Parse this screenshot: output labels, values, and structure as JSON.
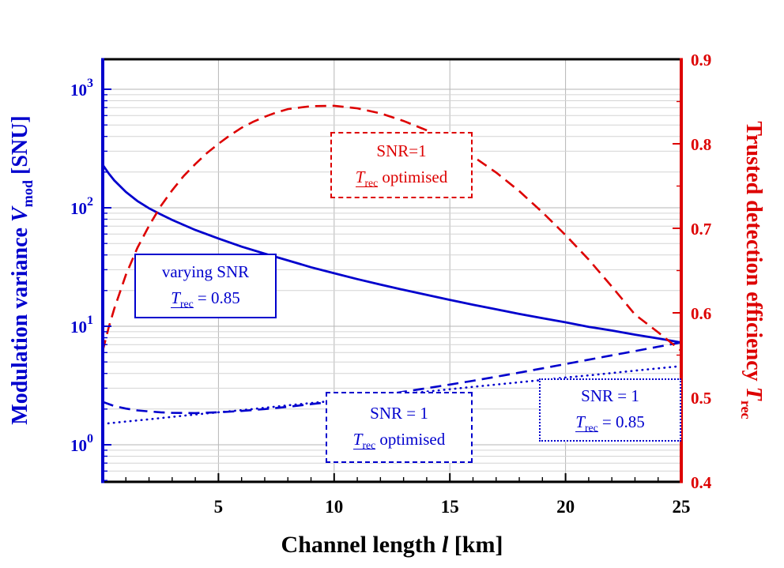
{
  "figure": {
    "background": "#ffffff"
  },
  "colors": {
    "blue": "#0000cd",
    "red": "#dd0000",
    "grid_major": "#b6b6b6",
    "grid_minor": "#d4d4d4",
    "frame": "#000000"
  },
  "axes": {
    "x": {
      "prefix": "Channel length ",
      "var": "l",
      "suffix": " [km]"
    },
    "y_left": {
      "prefix": "Modulation variance ",
      "var": "V",
      "sub": "mod",
      "suffix": " [SNU]"
    },
    "y_right": {
      "prefix": "Trusted detection efficiency ",
      "var": "T",
      "sub": "rec",
      "suffix": ""
    }
  },
  "legends": {
    "red_optimised": {
      "line1": "SNR=1",
      "var": "T",
      "sub": "rec",
      "rest": " optimised"
    },
    "blue_solid": {
      "line1": "varying SNR",
      "var": "T",
      "sub": "rec",
      "rest": " = 0.85"
    },
    "blue_dashed": {
      "line1": "SNR = 1",
      "var": "T",
      "sub": "rec",
      "rest": " optimised"
    },
    "blue_dotted": {
      "line1": "SNR = 1",
      "var": "T",
      "sub": "rec",
      "rest": " = 0.85"
    }
  },
  "chart_data": {
    "type": "line",
    "x_axis": {
      "label": "Channel length l [km]",
      "range": [
        0,
        25
      ],
      "major_ticks": [
        5,
        10,
        15,
        20,
        25
      ],
      "tick_labels": [
        "5",
        "10",
        "15",
        "20",
        "25"
      ],
      "minor_tick_step": 1,
      "gridlines": [
        5,
        10,
        15,
        20
      ]
    },
    "y_left_axis": {
      "label": "Modulation variance V_mod [SNU]",
      "scale": "log",
      "color": "#0000cd",
      "ticks": [
        1,
        10,
        100,
        1000
      ],
      "tick_base": "10",
      "tick_exponents": [
        "0",
        "1",
        "2",
        "3"
      ],
      "range_exponents": [
        -0.315,
        3.255
      ]
    },
    "y_right_axis": {
      "label": "Trusted detection efficiency T_rec",
      "scale": "linear",
      "color": "#dd0000",
      "range": [
        0.4,
        0.9
      ],
      "major_ticks": [
        0.4,
        0.5,
        0.6,
        0.7,
        0.8,
        0.9
      ],
      "tick_labels": [
        "0.4",
        "0.5",
        "0.6",
        "0.7",
        "0.8",
        "0.9"
      ],
      "minor_tick_step": 0.05
    },
    "grid": true,
    "series": [
      {
        "name": "varying SNR, T_rec = 0.85",
        "axis": "left",
        "style": "solid",
        "color": "#0000cd",
        "x": [
          0,
          0.25,
          0.5,
          1,
          1.5,
          2,
          2.5,
          3,
          4,
          5,
          6,
          7,
          8,
          9,
          10,
          11,
          12,
          13,
          14,
          15,
          16,
          17,
          18,
          19,
          20,
          21,
          22,
          23,
          24,
          25
        ],
        "y": [
          230,
          196,
          170,
          136,
          114,
          99,
          88,
          79,
          65,
          55,
          47,
          41,
          36,
          31.5,
          28,
          25,
          22.5,
          20.3,
          18.4,
          16.7,
          15.2,
          13.9,
          12.7,
          11.7,
          10.8,
          9.9,
          9.2,
          8.5,
          7.9,
          7.3
        ]
      },
      {
        "name": "SNR = 1, T_rec = 0.85",
        "axis": "left",
        "style": "dotted",
        "color": "#0000cd",
        "x": [
          0,
          1,
          2,
          3,
          4,
          5,
          6,
          7,
          8,
          9,
          10,
          11,
          12,
          13,
          14,
          15,
          16,
          17,
          18,
          19,
          20,
          21,
          22,
          23,
          24,
          25
        ],
        "y": [
          1.5,
          1.57,
          1.64,
          1.72,
          1.8,
          1.88,
          1.96,
          2.05,
          2.15,
          2.25,
          2.35,
          2.46,
          2.57,
          2.69,
          2.81,
          2.94,
          3.08,
          3.22,
          3.37,
          3.52,
          3.69,
          3.85,
          4.03,
          4.22,
          4.41,
          4.61
        ]
      },
      {
        "name": "SNR = 1, T_rec optimised (V_mod)",
        "axis": "left",
        "style": "dashed",
        "color": "#0000cd",
        "x": [
          0,
          0.5,
          1,
          1.5,
          2,
          2.5,
          3,
          4,
          5,
          6,
          7,
          8,
          9,
          10,
          11,
          12,
          13,
          14,
          15,
          16,
          17,
          18,
          19,
          20,
          21,
          22,
          23,
          24,
          25
        ],
        "y": [
          2.3,
          2.12,
          2.02,
          1.95,
          1.91,
          1.88,
          1.86,
          1.85,
          1.88,
          1.93,
          2.0,
          2.09,
          2.2,
          2.32,
          2.46,
          2.62,
          2.8,
          3.0,
          3.22,
          3.47,
          3.75,
          4.06,
          4.41,
          4.8,
          5.22,
          5.68,
          6.18,
          6.72,
          7.3
        ]
      },
      {
        "name": "SNR = 1, T_rec optimised",
        "axis": "right",
        "style": "dashed",
        "color": "#dd0000",
        "x": [
          0,
          0.25,
          0.5,
          1,
          1.5,
          2,
          2.5,
          3,
          3.5,
          4,
          4.5,
          5,
          5.5,
          6,
          6.5,
          7,
          7.5,
          8,
          9,
          10,
          11,
          12,
          13,
          14,
          15,
          16,
          17,
          18,
          19,
          20,
          21,
          22,
          23,
          24,
          25
        ],
        "y": [
          0.555,
          0.582,
          0.605,
          0.645,
          0.677,
          0.703,
          0.726,
          0.745,
          0.762,
          0.776,
          0.789,
          0.8,
          0.81,
          0.819,
          0.826,
          0.832,
          0.837,
          0.841,
          0.8445,
          0.845,
          0.842,
          0.836,
          0.827,
          0.816,
          0.801,
          0.785,
          0.766,
          0.744,
          0.719,
          0.692,
          0.663,
          0.631,
          0.598,
          0.577,
          0.555
        ]
      }
    ]
  }
}
